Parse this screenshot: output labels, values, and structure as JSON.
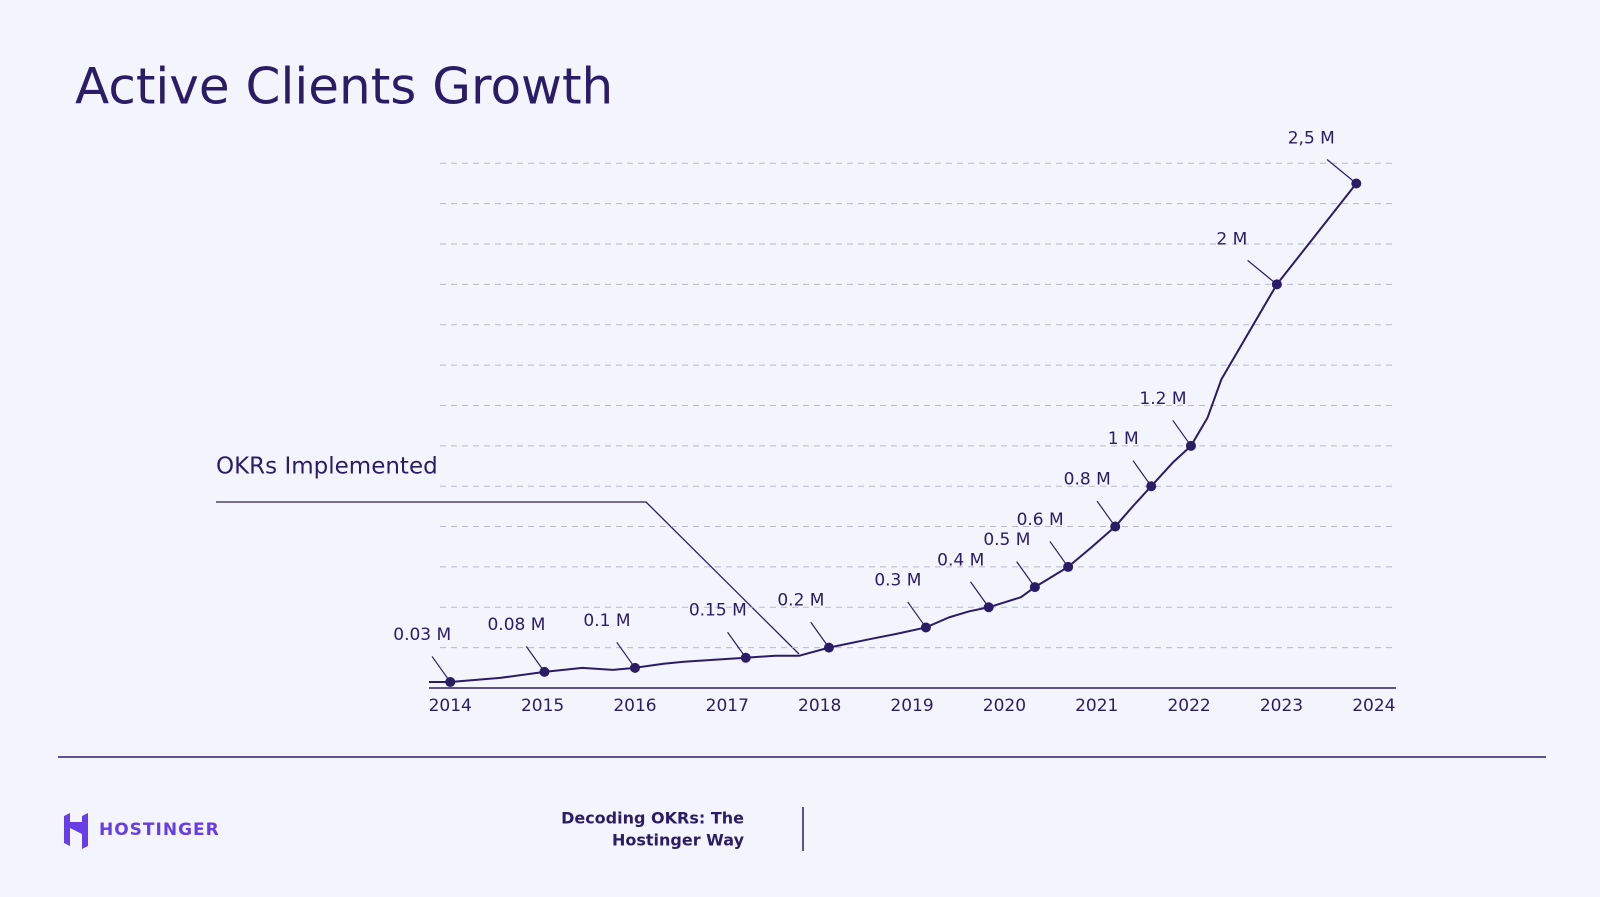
{
  "chart_data": {
    "type": "line",
    "title": "Active Clients Growth",
    "annotation": "OKRs Implemented",
    "color": "#2b1c66",
    "series": [
      {
        "x": [
          2013.77,
          2014.0,
          2014.54,
          2015.02,
          2015.43,
          2015.76,
          2016.0,
          2016.31,
          2016.53,
          2016.86,
          2017.2,
          2017.52,
          2017.78,
          2018.1,
          2018.52,
          2018.85,
          2019.15,
          2019.4,
          2019.62,
          2019.83,
          2020.18,
          2020.33,
          2020.69,
          2020.95,
          2021.2,
          2021.39,
          2021.59,
          2021.83,
          2022.02,
          2022.2,
          2022.35,
          2022.95,
          2023.81
        ],
        "values": [
          0.03,
          0.03,
          0.05,
          0.08,
          0.1,
          0.09,
          0.1,
          0.12,
          0.13,
          0.14,
          0.15,
          0.16,
          0.16,
          0.2,
          0.24,
          0.27,
          0.3,
          0.35,
          0.38,
          0.4,
          0.45,
          0.5,
          0.6,
          0.7,
          0.8,
          0.9,
          1,
          1.12,
          1.2,
          1.34,
          1.53,
          2,
          2.5
        ]
      }
    ],
    "markers": {
      "x": [
        2014.0,
        2015.02,
        2016.0,
        2017.2,
        2018.1,
        2019.15,
        2019.83,
        2020.33,
        2020.69,
        2021.2,
        2021.59,
        2022.02,
        2022.95,
        2023.81
      ],
      "values": [
        0.03,
        0.08,
        0.1,
        0.15,
        0.2,
        0.3,
        0.4,
        0.5,
        0.6,
        0.8,
        1,
        1.2,
        2,
        2.5
      ],
      "value_labels": [
        "0.03 M",
        "0.08 M",
        "0.1 M",
        "0.15 M",
        "0.2 M",
        "0.3 M",
        "0.4 M",
        "0.5 M",
        "0.6 M",
        "0.8 M",
        "1 M",
        "1.2 M",
        "2 M",
        "2,5 M"
      ]
    },
    "xlim": [
      2013.77,
      2024.24
    ],
    "xticks": [
      2014,
      2015,
      2016,
      2017,
      2018,
      2019,
      2020,
      2021,
      2022,
      2023,
      2024
    ],
    "ylim": [
      0,
      2.6
    ],
    "yticks": [
      0.2,
      0.4,
      0.6,
      0.8,
      1,
      1.2,
      1.4,
      1.6,
      1.8,
      2,
      2.2,
      2.4,
      2.6
    ],
    "grid": true
  },
  "footer": {
    "brand": "HOSTINGER",
    "caption": [
      "Decoding OKRs: The",
      "Hostinger Way"
    ]
  }
}
